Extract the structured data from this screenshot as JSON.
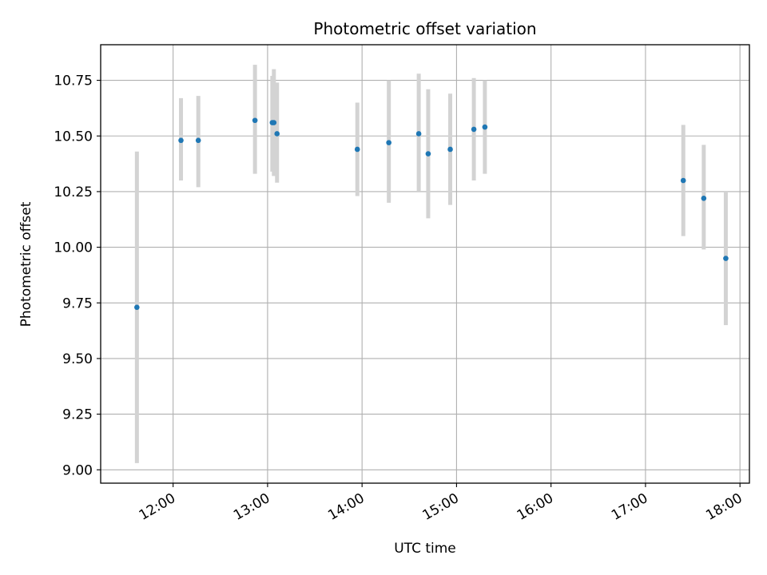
{
  "chart_data": {
    "type": "scatter",
    "title": "Photometric offset variation",
    "xlabel": "UTC time",
    "ylabel": "Photometric offset",
    "xlim": [
      "11:14",
      "18:06"
    ],
    "ylim": [
      8.94,
      10.91
    ],
    "x_ticks": [
      "12:00",
      "13:00",
      "14:00",
      "15:00",
      "16:00",
      "17:00",
      "18:00"
    ],
    "y_ticks": [
      "9.00",
      "9.25",
      "9.50",
      "9.75",
      "10.00",
      "10.25",
      "10.50",
      "10.75"
    ],
    "grid": true,
    "colors": {
      "points": "#1f77b4",
      "error_bars": "#d3d3d3",
      "grid": "#b0b0b0"
    },
    "series": [
      {
        "points": [
          {
            "time": "11:37",
            "value": 9.73,
            "low": 9.03,
            "high": 10.43
          },
          {
            "time": "12:05",
            "value": 10.48,
            "low": 10.3,
            "high": 10.67
          },
          {
            "time": "12:16",
            "value": 10.48,
            "low": 10.27,
            "high": 10.68
          },
          {
            "time": "12:52",
            "value": 10.57,
            "low": 10.33,
            "high": 10.82
          },
          {
            "time": "13:03",
            "value": 10.56,
            "low": 10.34,
            "high": 10.77
          },
          {
            "time": "13:04",
            "value": 10.56,
            "low": 10.32,
            "high": 10.8
          },
          {
            "time": "13:06",
            "value": 10.51,
            "low": 10.29,
            "high": 10.74
          },
          {
            "time": "13:57",
            "value": 10.44,
            "low": 10.23,
            "high": 10.65
          },
          {
            "time": "14:17",
            "value": 10.47,
            "low": 10.2,
            "high": 10.75
          },
          {
            "time": "14:36",
            "value": 10.51,
            "low": 10.25,
            "high": 10.78
          },
          {
            "time": "14:42",
            "value": 10.42,
            "low": 10.13,
            "high": 10.71
          },
          {
            "time": "14:56",
            "value": 10.44,
            "low": 10.19,
            "high": 10.69
          },
          {
            "time": "15:11",
            "value": 10.53,
            "low": 10.3,
            "high": 10.76
          },
          {
            "time": "15:18",
            "value": 10.54,
            "low": 10.33,
            "high": 10.75
          },
          {
            "time": "17:24",
            "value": 10.3,
            "low": 10.05,
            "high": 10.55
          },
          {
            "time": "17:37",
            "value": 10.22,
            "low": 9.99,
            "high": 10.46
          },
          {
            "time": "17:51",
            "value": 9.95,
            "low": 9.65,
            "high": 10.25
          }
        ]
      }
    ]
  }
}
